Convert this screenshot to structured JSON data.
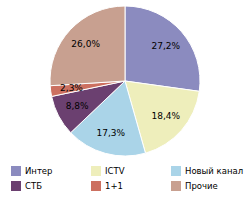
{
  "chart_data": {
    "type": "pie",
    "categories": [
      "Интер",
      "ICTV",
      "Новый канал",
      "СТБ",
      "1+1",
      "Прочие"
    ],
    "values": [
      27.2,
      18.4,
      17.3,
      8.8,
      2.3,
      26.0
    ],
    "value_labels": [
      "27,2%",
      "18,4%",
      "17,3%",
      "8,8%",
      "2,3%",
      "26,0%"
    ],
    "colors": [
      "#8b8bbf",
      "#eeeebb",
      "#aad4e8",
      "#6b4070",
      "#cc7060",
      "#c8a090"
    ],
    "data_labels": true,
    "legend": "bottom"
  }
}
